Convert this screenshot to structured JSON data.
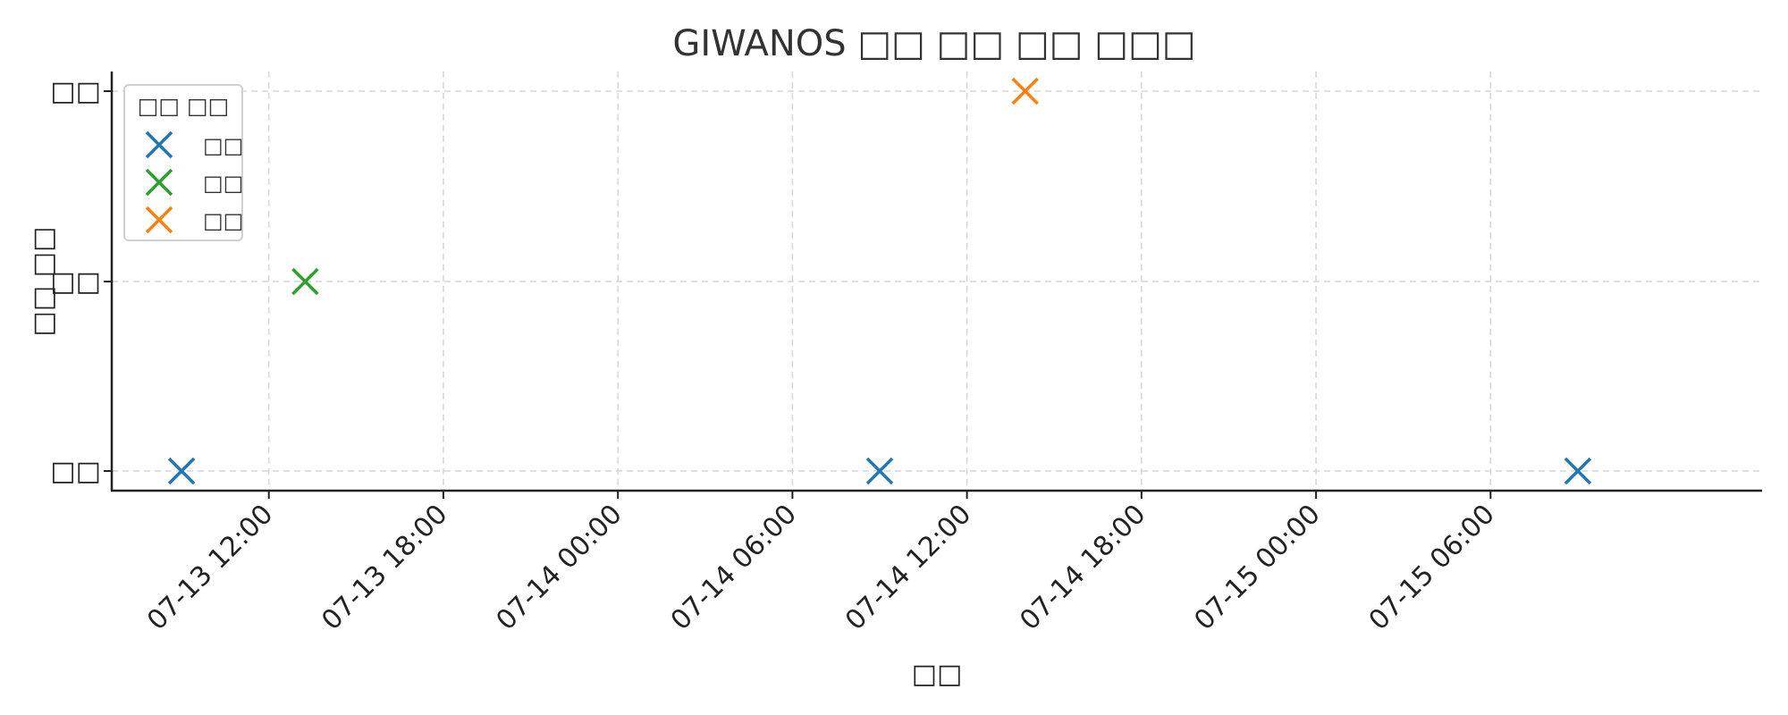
{
  "chart_data": {
    "type": "scatter",
    "title": "GIWANOS □□ □□ □□ □□□",
    "xlabel": "□□",
    "ylabel": "□□ □□",
    "x_type": "datetime",
    "xlim": [
      "2025-07-13T06:36",
      "2025-07-15T15:20"
    ],
    "x_ticks": [
      {
        "value": "2025-07-13T12:00",
        "label": "07-13 12:00"
      },
      {
        "value": "2025-07-13T18:00",
        "label": "07-13 18:00"
      },
      {
        "value": "2025-07-14T00:00",
        "label": "07-14 00:00"
      },
      {
        "value": "2025-07-14T06:00",
        "label": "07-14 06:00"
      },
      {
        "value": "2025-07-14T12:00",
        "label": "07-14 12:00"
      },
      {
        "value": "2025-07-14T18:00",
        "label": "07-14 18:00"
      },
      {
        "value": "2025-07-15T00:00",
        "label": "07-15 00:00"
      },
      {
        "value": "2025-07-15T06:00",
        "label": "07-15 06:00"
      }
    ],
    "y_categories": [
      "□□",
      "□□",
      "□□"
    ],
    "grid": true,
    "legend": {
      "title": "□□ □□",
      "position": "top-left"
    },
    "series": [
      {
        "name": "□□",
        "color": "#1f77b4",
        "marker": "x",
        "points": [
          {
            "x": "2025-07-13T09:00",
            "y": 0
          },
          {
            "x": "2025-07-14T09:00",
            "y": 0
          },
          {
            "x": "2025-07-15T09:00",
            "y": 0
          }
        ]
      },
      {
        "name": "□□",
        "color": "#2ca02c",
        "marker": "x",
        "points": [
          {
            "x": "2025-07-13T13:15",
            "y": 1
          }
        ]
      },
      {
        "name": "□□",
        "color": "#ff7f0e",
        "marker": "x",
        "points": [
          {
            "x": "2025-07-14T14:00",
            "y": 2
          }
        ]
      }
    ]
  }
}
